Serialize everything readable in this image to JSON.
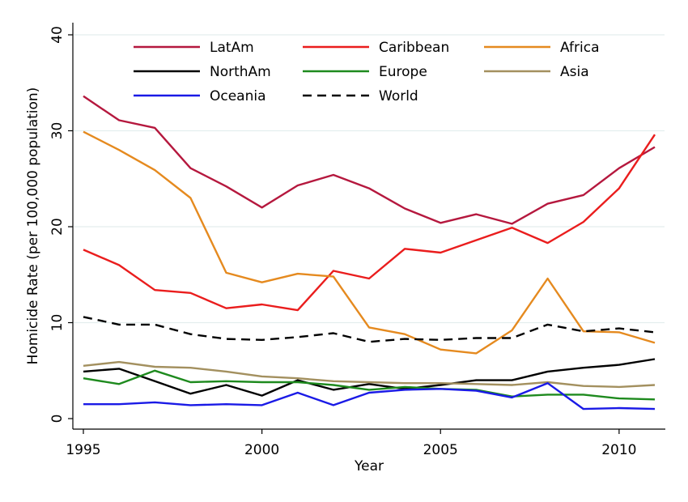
{
  "chart_data": {
    "type": "line",
    "title": "",
    "xlabel": "Year",
    "ylabel": "Homicide Rate (per 100,000 population)",
    "xlim": [
      1995,
      2011
    ],
    "ylim": [
      0,
      40
    ],
    "xticks": [
      1995,
      2000,
      2005,
      2010
    ],
    "yticks": [
      0,
      10,
      20,
      30,
      40
    ],
    "grid": "horizontal",
    "legend_placement": "top",
    "x": [
      1995,
      1996,
      1997,
      1998,
      1999,
      2000,
      2001,
      2002,
      2003,
      2004,
      2005,
      2006,
      2007,
      2008,
      2009,
      2010,
      2011
    ],
    "series": [
      {
        "name": "LatAm",
        "color": "#b5183e",
        "dashed": false,
        "values": [
          33.6,
          31.1,
          30.3,
          26.1,
          24.2,
          22.0,
          24.3,
          25.4,
          24.0,
          21.9,
          20.4,
          21.3,
          20.3,
          22.4,
          23.3,
          26.1,
          28.3
        ]
      },
      {
        "name": "Caribbean",
        "color": "#ea1d1d",
        "dashed": false,
        "values": [
          17.6,
          16.0,
          13.4,
          13.1,
          11.5,
          11.9,
          11.3,
          15.4,
          14.6,
          17.7,
          17.3,
          18.6,
          19.9,
          18.3,
          20.5,
          24.0,
          29.6
        ]
      },
      {
        "name": "Africa",
        "color": "#e58a1f",
        "dashed": false,
        "values": [
          29.9,
          28.0,
          25.9,
          23.0,
          15.2,
          14.2,
          15.1,
          14.8,
          9.5,
          8.8,
          7.2,
          6.8,
          9.2,
          14.6,
          9.1,
          9.0,
          7.9
        ]
      },
      {
        "name": "NorthAm",
        "color": "#000000",
        "dashed": false,
        "values": [
          4.9,
          5.2,
          3.9,
          2.6,
          3.5,
          2.4,
          4.0,
          3.0,
          3.6,
          3.1,
          3.5,
          4.0,
          4.0,
          4.9,
          5.3,
          5.6,
          6.2
        ]
      },
      {
        "name": "Europe",
        "color": "#1e8a1e",
        "dashed": false,
        "values": [
          4.2,
          3.6,
          5.0,
          3.8,
          3.9,
          3.8,
          3.8,
          3.5,
          3.0,
          3.3,
          3.1,
          3.0,
          2.3,
          2.5,
          2.5,
          2.1,
          2.0
        ]
      },
      {
        "name": "Asia",
        "color": "#a3905f",
        "dashed": false,
        "values": [
          5.5,
          5.9,
          5.4,
          5.3,
          4.9,
          4.4,
          4.2,
          3.9,
          3.8,
          3.7,
          3.7,
          3.6,
          3.5,
          3.8,
          3.4,
          3.3,
          3.5
        ]
      },
      {
        "name": "Oceania",
        "color": "#1a1ae6",
        "dashed": false,
        "values": [
          1.5,
          1.5,
          1.7,
          1.4,
          1.5,
          1.4,
          2.7,
          1.4,
          2.7,
          3.0,
          3.1,
          2.9,
          2.2,
          3.7,
          1.0,
          1.1,
          1.0
        ]
      },
      {
        "name": "World",
        "color": "#000000",
        "dashed": true,
        "values": [
          10.6,
          9.8,
          9.8,
          8.8,
          8.3,
          8.2,
          8.5,
          8.9,
          8.0,
          8.3,
          8.2,
          8.4,
          8.4,
          9.8,
          9.1,
          9.4,
          9.0
        ]
      }
    ]
  }
}
